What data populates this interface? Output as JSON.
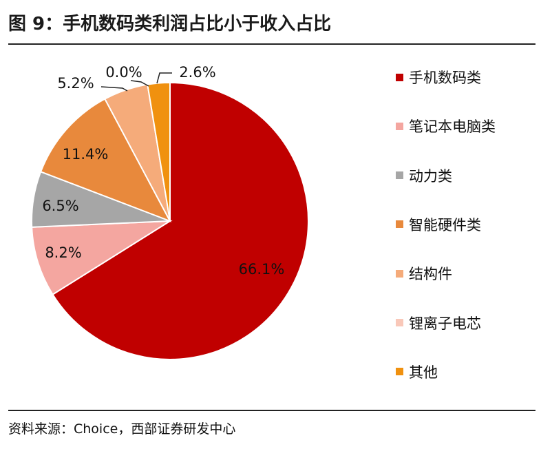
{
  "title": "图 9：手机数码类利润占比小于收入占比",
  "source": "资料来源：Choice，西部证券研发中心",
  "chart_data": {
    "type": "pie",
    "categories": [
      "手机数码类",
      "笔记本电脑类",
      "动力类",
      "智能硬件类",
      "结构件",
      "锂离子电芯",
      "其他"
    ],
    "values": [
      66.1,
      8.2,
      6.5,
      11.4,
      5.2,
      0.0,
      2.6
    ],
    "labels": [
      "66.1%",
      "8.2%",
      "6.5%",
      "11.4%",
      "5.2%",
      "0.0%",
      "2.6%"
    ],
    "colors": [
      "#c00000",
      "#f4a6a0",
      "#a6a6a6",
      "#e8893c",
      "#f5ab7a",
      "#f9c8b9",
      "#f0910f"
    ],
    "legend_position": "right",
    "start": "12 o'clock",
    "direction": "clockwise"
  }
}
